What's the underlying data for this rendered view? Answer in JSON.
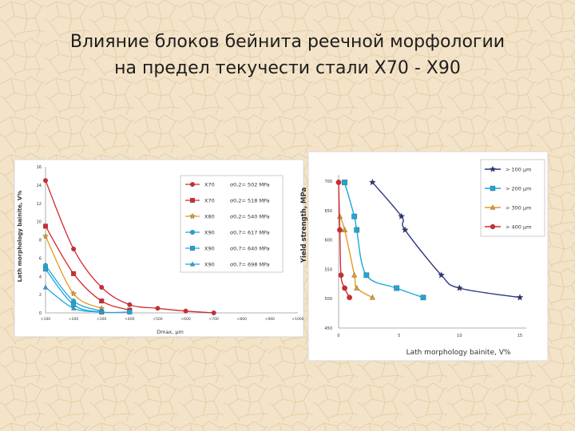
{
  "title_line1": "Влияние блоков бейнита реечной морфологии",
  "title_line2": "на предел текучести стали Х70 - Х90",
  "colors": {
    "background": "#f3e3c8",
    "red": "#d6282b",
    "orange": "#e59a20",
    "cyan": "#1aa7dc",
    "navy": "#2a3583"
  },
  "chart_data": [
    {
      "type": "line",
      "title": "",
      "xlabel": "Dmax, μm",
      "ylabel": "Lath morphology bainite, V%",
      "categories": [
        "<100",
        "<200",
        "<300",
        "<400",
        "<500",
        "<600",
        "<700",
        "<800",
        "<900",
        "<1000"
      ],
      "ylim": [
        0,
        16
      ],
      "yticks": [
        "0",
        "2",
        "4",
        "6",
        "8",
        "10",
        "12",
        "14",
        "16"
      ],
      "grid": false,
      "legend_position": "upper-right",
      "series": [
        {
          "name": "X70",
          "stress_label": "σ0,2= 502 MPa",
          "color": "#d6282b",
          "marker": "circle",
          "values": [
            14.5,
            7,
            2.8,
            0.9,
            0.5,
            0.2,
            0,
            null,
            null,
            null
          ]
        },
        {
          "name": "X70",
          "stress_label": "σ0,2= 518 MPa",
          "color": "#d6282b",
          "marker": "square",
          "values": [
            9.5,
            4.3,
            1.3,
            0.3,
            null,
            null,
            null,
            null,
            null,
            null
          ]
        },
        {
          "name": "X80",
          "stress_label": "σ0,2= 540 MPa",
          "color": "#e59a20",
          "marker": "star",
          "values": [
            8.4,
            2.1,
            0.5,
            null,
            null,
            null,
            null,
            null,
            null,
            null
          ]
        },
        {
          "name": "X90",
          "stress_label": "σ0,7= 617 MPa",
          "color": "#1aa7dc",
          "marker": "circle",
          "values": [
            5.2,
            1.3,
            0.2,
            null,
            null,
            null,
            null,
            null,
            null,
            null
          ]
        },
        {
          "name": "X90",
          "stress_label": "σ0,7= 640 MPa",
          "color": "#1aa7dc",
          "marker": "square",
          "values": [
            4.8,
            0.9,
            0.1,
            0.1,
            null,
            null,
            null,
            null,
            null,
            null
          ]
        },
        {
          "name": "X90",
          "stress_label": "σ0,7= 698 MPa",
          "color": "#1aa7dc",
          "marker": "triangle",
          "values": [
            2.8,
            0.5,
            0.1,
            null,
            null,
            null,
            null,
            null,
            null,
            null
          ]
        }
      ]
    },
    {
      "type": "scatter",
      "title": "",
      "xlabel": "Lath morphology bainite, V%",
      "ylabel": "Yield strength, MPa",
      "xlim": [
        0,
        15
      ],
      "ylim": [
        450,
        700
      ],
      "xticks": [
        "0",
        "5",
        "10",
        "15"
      ],
      "yticks": [
        "450",
        "500",
        "550",
        "600",
        "650",
        "700"
      ],
      "grid": false,
      "legend_position": "upper-right",
      "series": [
        {
          "name": "> 100 μm",
          "color": "#2a3583",
          "marker": "star",
          "x": [
            2.8,
            5.2,
            5.5,
            8.5,
            10,
            15
          ],
          "y": [
            698,
            640,
            617,
            540,
            518,
            502
          ]
        },
        {
          "name": "> 200 μm",
          "color": "#1aa7dc",
          "marker": "square",
          "x": [
            0.5,
            1.3,
            1.5,
            2.3,
            4.8,
            7
          ],
          "y": [
            698,
            640,
            617,
            540,
            518,
            502
          ]
        },
        {
          "name": "> 300 μm",
          "color": "#e59a20",
          "marker": "triangle",
          "x": [
            0.1,
            0.5,
            1.3,
            1.5,
            2.8
          ],
          "y": [
            640,
            617,
            540,
            518,
            502
          ]
        },
        {
          "name": "> 400 μm",
          "color": "#d6282b",
          "marker": "circle",
          "x": [
            0,
            0.1,
            0.2,
            0.5,
            0.9
          ],
          "y": [
            698,
            617,
            540,
            518,
            502
          ]
        }
      ]
    }
  ]
}
